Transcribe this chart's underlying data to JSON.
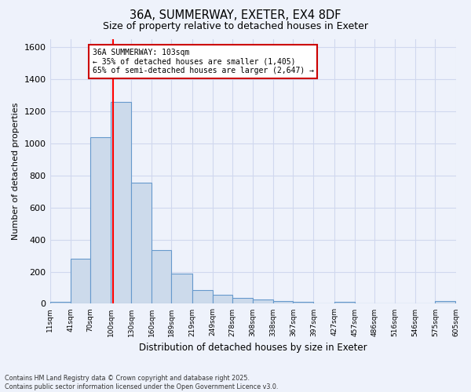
{
  "title_line1": "36A, SUMMERWAY, EXETER, EX4 8DF",
  "title_line2": "Size of property relative to detached houses in Exeter",
  "xlabel": "Distribution of detached houses by size in Exeter",
  "ylabel": "Number of detached properties",
  "bar_color": "#ccdaeb",
  "bar_edge_color": "#6699cc",
  "background_color": "#eef2fb",
  "grid_color": "#d0d8ee",
  "red_line_x": 103,
  "annotation_text": "36A SUMMERWAY: 103sqm\n← 35% of detached houses are smaller (1,405)\n65% of semi-detached houses are larger (2,647) →",
  "annotation_box_facecolor": "white",
  "annotation_box_edgecolor": "#cc0000",
  "footer_line1": "Contains HM Land Registry data © Crown copyright and database right 2025.",
  "footer_line2": "Contains public sector information licensed under the Open Government Licence v3.0.",
  "bin_edges": [
    11,
    41,
    70,
    100,
    130,
    160,
    189,
    219,
    249,
    278,
    308,
    338,
    367,
    397,
    427,
    457,
    486,
    516,
    546,
    575,
    605
  ],
  "bin_counts": [
    10,
    280,
    1040,
    1260,
    755,
    335,
    190,
    85,
    55,
    35,
    25,
    15,
    10,
    0,
    12,
    0,
    0,
    0,
    0,
    15
  ],
  "ylim": [
    0,
    1650
  ],
  "yticks": [
    0,
    200,
    400,
    600,
    800,
    1000,
    1200,
    1400,
    1600
  ]
}
